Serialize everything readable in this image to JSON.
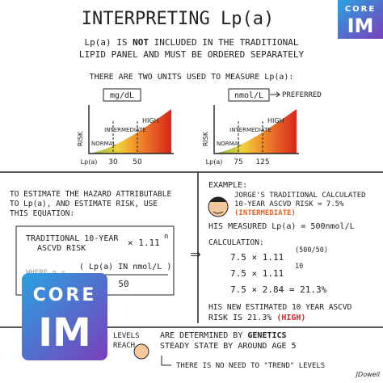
{
  "header": {
    "title": "INTERPRETING Lp(a)",
    "badge": [
      "CORE",
      "IM"
    ],
    "subtitle": [
      "Lp(a) IS",
      "NOT",
      "INCLUDED IN THE TRADITIONAL",
      "LIPID PANEL AND MUST BE ORDERED SEPARATELY"
    ]
  },
  "units": {
    "intro": "THERE ARE TWO UNITS USED TO MEASURE Lp(a):",
    "charts": [
      {
        "unit": "mg/dL",
        "axis": "RISK",
        "x_label": "Lp(a)",
        "cutoffs": [
          "30",
          "50"
        ],
        "zones": [
          "NORMAL",
          "INTERMEDIATE",
          "HIGH"
        ]
      },
      {
        "unit": "nmol/L",
        "note": "PREFERRED",
        "axis": "RISK",
        "x_label": "Lp(a)",
        "cutoffs": [
          "75",
          "125"
        ],
        "zones": [
          "NORMAL",
          "INTERMEDIATE",
          "HIGH"
        ]
      }
    ]
  },
  "equation": {
    "intro": [
      "TO ESTIMATE THE HAZARD ATTRIBUTABLE",
      "TO Lp(a), AND ESTIMATE RISK, USE",
      "THIS EQUATION:"
    ],
    "risk": [
      "TRADITIONAL 10-YEAR",
      "ASCVD RISK"
    ],
    "multiplier": "× 1.11",
    "exponent": "n",
    "where": "WHERE n =",
    "numerator": "( Lp(a) IN nmol/L )",
    "denominator": "50"
  },
  "example": {
    "label": "EXAMPLE:",
    "setup": [
      "JORGE'S TRADITIONAL CALCULATED",
      "10-YEAR ASCVD RISK = 7.5%"
    ],
    "setup_category": "(INTERMEDIATE)",
    "measured": "HIS MEASURED Lp(a) = 500nmol/L",
    "calculation_label": "CALCULATION:",
    "steps": [
      {
        "base": "7.5 × 1.11",
        "exponent": "(500/50)"
      },
      {
        "base": "7.5 × 1.11",
        "exponent": "10"
      },
      {
        "base": "7.5 × 2.84 = 21.3%"
      }
    ],
    "result": [
      "HIS NEW ESTIMATED 10 YEAR ASCVD",
      "RISK IS 21.3%",
      "(HIGH)"
    ]
  },
  "footer": {
    "lines": [
      "LEVELS",
      "REACH"
    ],
    "facts": [
      "ARE DETERMINED BY",
      "GENETICS",
      "STEADY STATE BY AROUND AGE 5"
    ],
    "note": "THERE IS NO NEED TO \"TREND\" LEVELS",
    "signature": "JDowell"
  },
  "logo": [
    "CORE",
    "IM"
  ]
}
